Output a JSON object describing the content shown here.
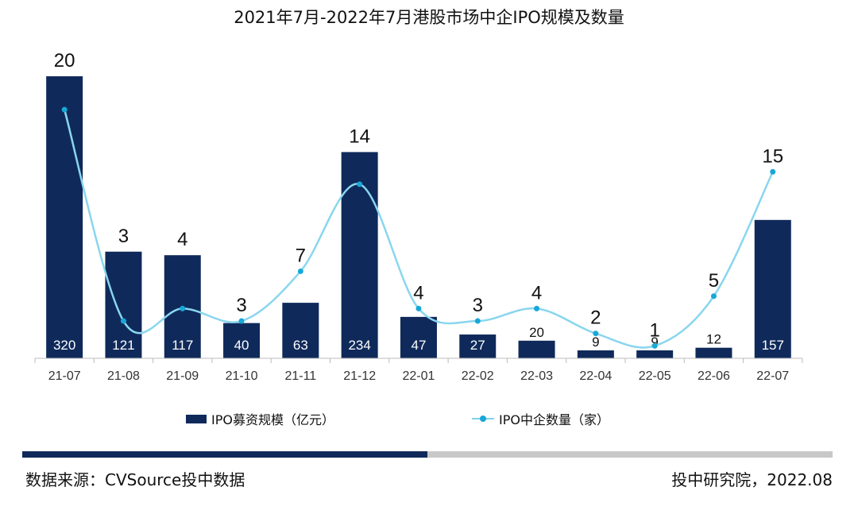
{
  "chart_data": {
    "type": "bar",
    "title": "2021年7月-2022年7月港股市场中企IPO规模及数量",
    "categories": [
      "21-07",
      "21-08",
      "21-09",
      "21-10",
      "21-11",
      "21-12",
      "22-01",
      "22-02",
      "22-03",
      "22-04",
      "22-05",
      "22-06",
      "22-07"
    ],
    "series": [
      {
        "name": "IPO募资规模（亿元）",
        "type": "bar",
        "color": "#0f2a5a",
        "values": [
          320,
          121,
          117,
          40,
          63,
          234,
          47,
          27,
          20,
          9,
          9,
          12,
          157
        ]
      },
      {
        "name": "IPO中企数量（家）",
        "type": "line",
        "color": "#18a8d8",
        "values": [
          20,
          3,
          4,
          3,
          7,
          14,
          4,
          3,
          4,
          2,
          1,
          5,
          15
        ]
      }
    ],
    "grid": false,
    "legend": "bottom"
  },
  "footer": {
    "source": "数据来源：CVSource投中数据",
    "credit": "投中研究院，2022.08"
  }
}
